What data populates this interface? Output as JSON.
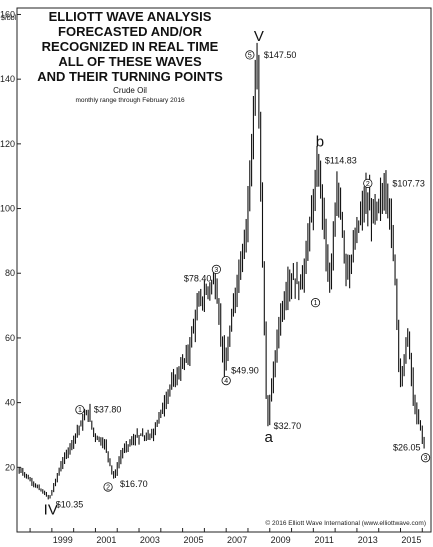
{
  "chart_data": {
    "type": "bar",
    "style": "monthly range (high-low bars)",
    "title_lines": [
      "ELLIOTT WAVE ANALYSIS",
      "FORECASTED AND/OR",
      "RECOGNIZED IN REAL TIME",
      "ALL OF THESE WAVES",
      "AND THEIR TURNING POINTS"
    ],
    "subtitle": "Crude Oil",
    "note": "monthly range through February 2016",
    "ylabel": "$/bbl.",
    "ylim": [
      0,
      162
    ],
    "yticks": [
      20,
      40,
      60,
      80,
      100,
      120,
      140,
      160
    ],
    "xlim": [
      1997.4,
      2016.4
    ],
    "xticks": [
      "1999",
      "2001",
      "2003",
      "2005",
      "2007",
      "2009",
      "2011",
      "2013",
      "2015"
    ],
    "grid": false,
    "copyright": "© 2016 Elliott Wave International (www.elliottwave.com)",
    "anchors": [
      [
        1997.5,
        20
      ],
      [
        1998.2,
        15
      ],
      [
        1998.95,
        10.35
      ],
      [
        1999.5,
        21
      ],
      [
        2000.0,
        28
      ],
      [
        2000.7,
        37.8
      ],
      [
        2001.0,
        30
      ],
      [
        2001.5,
        27
      ],
      [
        2001.9,
        16.7
      ],
      [
        2002.3,
        25
      ],
      [
        2003.0,
        30
      ],
      [
        2003.6,
        29
      ],
      [
        2004.5,
        45
      ],
      [
        2005.3,
        55
      ],
      [
        2005.75,
        70
      ],
      [
        2006.55,
        78.4
      ],
      [
        2007.0,
        49.9
      ],
      [
        2007.5,
        75
      ],
      [
        2008.0,
        95
      ],
      [
        2008.5,
        147.5
      ],
      [
        2008.95,
        32.7
      ],
      [
        2009.5,
        65
      ],
      [
        2010.0,
        80
      ],
      [
        2010.5,
        75
      ],
      [
        2011.3,
        114.83
      ],
      [
        2011.8,
        75
      ],
      [
        2012.2,
        108
      ],
      [
        2012.6,
        78
      ],
      [
        2013.2,
        97
      ],
      [
        2013.5,
        105
      ],
      [
        2013.8,
        95
      ],
      [
        2014.4,
        107.73
      ],
      [
        2014.8,
        82
      ],
      [
        2015.05,
        45
      ],
      [
        2015.4,
        62
      ],
      [
        2015.7,
        38
      ],
      [
        2016.0,
        32
      ],
      [
        2016.15,
        26.05
      ]
    ],
    "annotations": [
      {
        "label": "IV",
        "kind": "letter",
        "x": 1998.95,
        "y": 10.35,
        "pos": "below"
      },
      {
        "label": "$10.35",
        "kind": "price",
        "x": 1998.95,
        "y": 10.35,
        "pos": "right"
      },
      {
        "label": "1",
        "kind": "circle",
        "x": 2000.7,
        "y": 37.8,
        "pos": "left"
      },
      {
        "label": "$37.80",
        "kind": "price",
        "x": 2000.7,
        "y": 37.8,
        "pos": "right"
      },
      {
        "label": "2",
        "kind": "circle",
        "x": 2001.9,
        "y": 16.7,
        "pos": "below-left"
      },
      {
        "label": "$16.70",
        "kind": "price",
        "x": 2001.9,
        "y": 16.7,
        "pos": "right"
      },
      {
        "label": "$78.40",
        "kind": "price",
        "x": 2006.55,
        "y": 78.4,
        "pos": "left"
      },
      {
        "label": "3",
        "kind": "circle",
        "x": 2006.55,
        "y": 78.4,
        "pos": "above"
      },
      {
        "label": "$49.90",
        "kind": "price",
        "x": 2007.0,
        "y": 49.9,
        "pos": "right"
      },
      {
        "label": "4",
        "kind": "circle",
        "x": 2007.0,
        "y": 49.9,
        "pos": "below"
      },
      {
        "label": "V",
        "kind": "letter",
        "x": 2008.5,
        "y": 147.5,
        "pos": "above"
      },
      {
        "label": "5",
        "kind": "circle",
        "x": 2008.5,
        "y": 147.5,
        "pos": "left"
      },
      {
        "label": "$147.50",
        "kind": "price",
        "x": 2008.5,
        "y": 147.5,
        "pos": "right"
      },
      {
        "label": "a",
        "kind": "letter",
        "x": 2008.95,
        "y": 32.7,
        "pos": "below"
      },
      {
        "label": "$32.70",
        "kind": "price",
        "x": 2008.95,
        "y": 32.7,
        "pos": "right"
      },
      {
        "label": "1",
        "kind": "circle",
        "x": 2011.1,
        "y": 74,
        "pos": "below"
      },
      {
        "label": "b",
        "kind": "letter",
        "x": 2011.3,
        "y": 114.83,
        "pos": "above"
      },
      {
        "label": "$114.83",
        "kind": "price",
        "x": 2011.3,
        "y": 114.83,
        "pos": "right"
      },
      {
        "label": "2",
        "kind": "circle",
        "x": 2013.5,
        "y": 105,
        "pos": "above"
      },
      {
        "label": "$107.73",
        "kind": "price",
        "x": 2014.4,
        "y": 107.73,
        "pos": "right"
      },
      {
        "label": "$26.05",
        "kind": "price",
        "x": 2016.15,
        "y": 26.05,
        "pos": "left"
      },
      {
        "label": "3",
        "kind": "circle",
        "x": 2016.15,
        "y": 26.05,
        "pos": "below"
      }
    ]
  }
}
